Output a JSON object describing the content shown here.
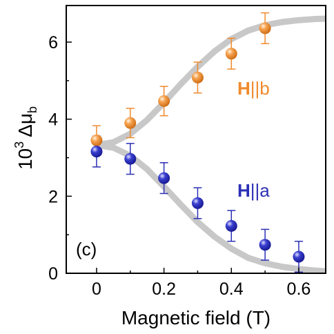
{
  "chart_data": {
    "type": "scatter",
    "panel_label": "(c)",
    "xlabel": "Magnetic field (T)",
    "ylabel": {
      "prefix": "10",
      "exponent": "3",
      "symbol": "Δμ",
      "subscript": "b"
    },
    "xlim": [
      -0.09,
      0.68
    ],
    "ylim": [
      0,
      6.95
    ],
    "x_ticks": [
      0,
      0.2,
      0.4,
      0.6
    ],
    "x_tick_labels": [
      "0",
      "0.2",
      "0.4",
      "0.6"
    ],
    "y_ticks": [
      0,
      2,
      4,
      6
    ],
    "y_tick_labels": [
      "0",
      "2",
      "4",
      "6"
    ],
    "grid": false,
    "legend": "none",
    "series": [
      {
        "name": "H||b",
        "label_parts": {
          "main": "H",
          "rest": "||b"
        },
        "color": "#f08a2c",
        "x": [
          0,
          0.1,
          0.2,
          0.3,
          0.4,
          0.5
        ],
        "y": [
          3.45,
          3.9,
          4.47,
          5.08,
          5.7,
          6.36
        ],
        "yerr": [
          0.38,
          0.38,
          0.38,
          0.4,
          0.4,
          0.4
        ]
      },
      {
        "name": "H||a",
        "label_parts": {
          "main": "H",
          "rest": "||a"
        },
        "color": "#2b2fb5",
        "x": [
          0,
          0.1,
          0.2,
          0.3,
          0.4,
          0.5,
          0.6
        ],
        "y": [
          3.16,
          2.97,
          2.47,
          1.82,
          1.23,
          0.74,
          0.43
        ],
        "yerr": [
          0.4,
          0.4,
          0.4,
          0.4,
          0.4,
          0.4,
          0.4
        ]
      }
    ],
    "fit_curves": [
      {
        "name": "fit-b",
        "color": "#c8c8c8",
        "x": [
          0,
          0.05,
          0.1,
          0.15,
          0.2,
          0.25,
          0.3,
          0.35,
          0.4,
          0.45,
          0.5,
          0.55,
          0.6,
          0.65,
          0.68
        ],
        "y": [
          3.33,
          3.4,
          3.62,
          3.98,
          4.43,
          4.91,
          5.36,
          5.76,
          6.08,
          6.3,
          6.44,
          6.52,
          6.57,
          6.6,
          6.61
        ]
      },
      {
        "name": "fit-a",
        "color": "#c8c8c8",
        "x": [
          0,
          0.05,
          0.1,
          0.15,
          0.2,
          0.25,
          0.3,
          0.35,
          0.4,
          0.45,
          0.5,
          0.55,
          0.6,
          0.65,
          0.68
        ],
        "y": [
          3.33,
          3.26,
          3.05,
          2.7,
          2.25,
          1.78,
          1.33,
          0.95,
          0.64,
          0.4,
          0.26,
          0.17,
          0.11,
          0.07,
          0.05
        ]
      }
    ]
  }
}
